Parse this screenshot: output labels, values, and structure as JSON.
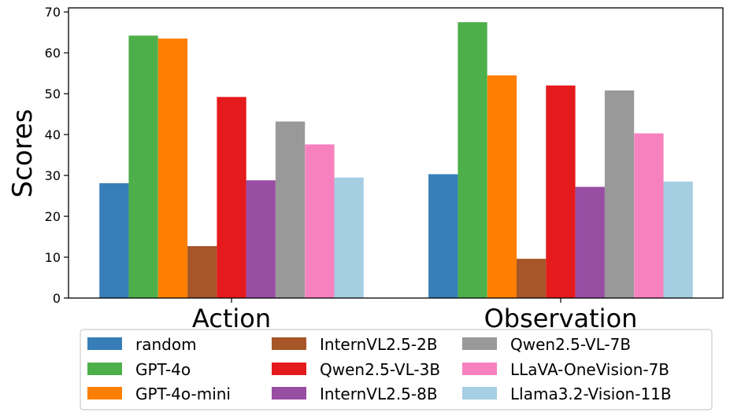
{
  "chart_data": {
    "type": "bar",
    "title": "",
    "xlabel": "",
    "ylabel": "Scores",
    "ylim": [
      0,
      71
    ],
    "yticks": [
      0,
      10,
      20,
      30,
      40,
      50,
      60,
      70
    ],
    "grid": false,
    "legend_position": "bottom",
    "categories": [
      "Action",
      "Observation"
    ],
    "series": [
      {
        "name": "random",
        "color": "#377eb8",
        "values": [
          28.1,
          30.3
        ]
      },
      {
        "name": "GPT-4o",
        "color": "#4daf4a",
        "values": [
          64.2,
          67.5
        ]
      },
      {
        "name": "GPT-4o-mini",
        "color": "#ff7f00",
        "values": [
          63.5,
          54.5
        ]
      },
      {
        "name": "InternVL2.5-2B",
        "color": "#a65628",
        "values": [
          12.7,
          9.6
        ]
      },
      {
        "name": "Qwen2.5-VL-3B",
        "color": "#e41a1c",
        "values": [
          49.2,
          52.0
        ]
      },
      {
        "name": "InternVL2.5-8B",
        "color": "#984ea3",
        "values": [
          28.8,
          27.2
        ]
      },
      {
        "name": "Qwen2.5-VL-7B",
        "color": "#999999",
        "values": [
          43.2,
          50.8
        ]
      },
      {
        "name": "LLaVA-OneVision-7B",
        "color": "#f781bf",
        "values": [
          37.6,
          40.3
        ]
      },
      {
        "name": "Llama3.2-Vision-11B",
        "color": "#a6cee3",
        "values": [
          29.5,
          28.5
        ]
      }
    ]
  }
}
